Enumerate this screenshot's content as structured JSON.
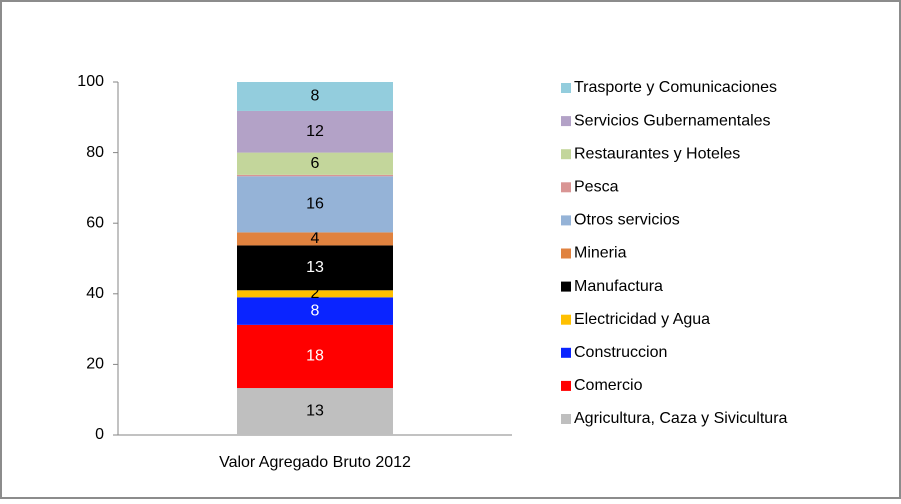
{
  "chart_data": {
    "type": "stacked_bar",
    "categories": [
      "Valor Agregado Bruto 2012"
    ],
    "ylim": [
      0,
      100
    ],
    "yticks": [
      0,
      20,
      40,
      60,
      80,
      100
    ],
    "legend": "right",
    "series": [
      {
        "name": "Agricultura, Caza y Sivicultura",
        "color": "#bfbfbf",
        "values": [
          13.3
        ],
        "value_labels": [
          "13"
        ]
      },
      {
        "name": "Comercio",
        "color": "#ff0000",
        "values": [
          17.9
        ],
        "value_labels": [
          "18"
        ]
      },
      {
        "name": "Construccion",
        "color": "#0a24ff",
        "values": [
          7.8
        ],
        "value_labels": [
          "8"
        ]
      },
      {
        "name": "Electricidad y Agua",
        "color": "#ffc000",
        "values": [
          2.0
        ],
        "value_labels": [
          "2"
        ]
      },
      {
        "name": "Manufactura",
        "color": "#000000",
        "values": [
          12.7
        ],
        "value_labels": [
          "13"
        ]
      },
      {
        "name": "Mineria",
        "color": "#e0823f",
        "values": [
          3.7
        ],
        "value_labels": [
          "4"
        ]
      },
      {
        "name": "Otros servicios",
        "color": "#95b3d7",
        "values": [
          15.9
        ],
        "value_labels": [
          "16"
        ]
      },
      {
        "name": "Pesca",
        "color": "#d99594",
        "values": [
          0.4
        ]
      },
      {
        "name": "Restaurantes y Hoteles",
        "color": "#c3d69b",
        "values": [
          6.3
        ],
        "value_labels": [
          "6"
        ]
      },
      {
        "name": "Servicios Gubernamentales",
        "color": "#b3a2c7",
        "values": [
          11.8
        ],
        "value_labels": [
          "12"
        ]
      },
      {
        "name": "Trasporte y Comunicaciones",
        "color": "#93cddd",
        "values": [
          8.2
        ],
        "value_labels": [
          "8"
        ]
      }
    ]
  }
}
